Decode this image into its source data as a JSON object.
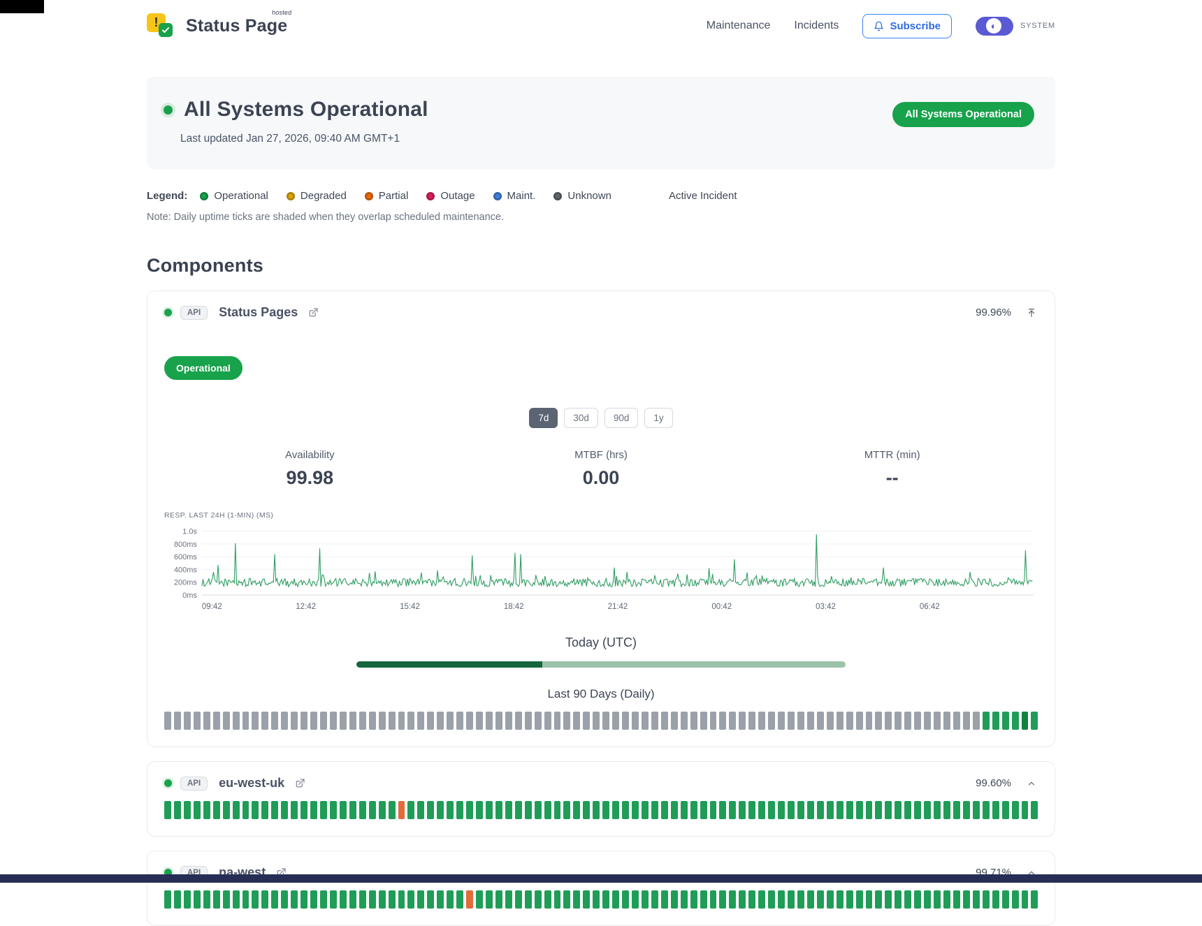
{
  "page": {
    "footer_bar_color": "#272e55"
  },
  "header": {
    "brand_name": "Status Page",
    "brand_sup": "hosted",
    "nav": [
      {
        "label": "Maintenance"
      },
      {
        "label": "Incidents"
      }
    ],
    "subscribe_label": "Subscribe",
    "theme_label": "SYSTEM"
  },
  "hero": {
    "title": "All Systems Operational",
    "last_updated": "Last updated Jan 27, 2026, 09:40 AM GMT+1",
    "badge_label": "All Systems Operational"
  },
  "legend": {
    "label": "Legend:",
    "items": [
      {
        "label": "Operational",
        "color": "#18a24b"
      },
      {
        "label": "Degraded",
        "color": "#d9a40a"
      },
      {
        "label": "Partial",
        "color": "#e8680a"
      },
      {
        "label": "Outage",
        "color": "#d91f5a"
      },
      {
        "label": "Maint.",
        "color": "#3f7ed6"
      },
      {
        "label": "Unknown",
        "color": "#5f6368"
      }
    ],
    "active_incident_label": "Active Incident",
    "note": "Note: Daily uptime ticks are shaded when they overlap scheduled maintenance."
  },
  "components": {
    "heading": "Components",
    "status_colors": {
      "operational": "#1f9d57",
      "operational_dark": "#11813f",
      "partial": "#e06c3a",
      "unknown": "#9aa1a9"
    },
    "ranges": [
      "7d",
      "30d",
      "90d",
      "1y"
    ],
    "selected_range": "7d",
    "stats": [
      {
        "label": "Availability",
        "value": "99.98"
      },
      {
        "label": "MTBF (hrs)",
        "value": "0.00"
      },
      {
        "label": "MTTR (min)",
        "value": "--"
      }
    ],
    "today_label": "Today (UTC)",
    "today_progress_pct": 38,
    "history_label": "Last 90 Days (Daily)",
    "items": [
      {
        "badge": "API",
        "name": "Status Pages",
        "uptime": "99.96%",
        "status_label": "Operational",
        "history_runs": [
          [
            "unknown",
            84
          ],
          [
            "operational",
            4
          ],
          [
            "operational_dark",
            1
          ],
          [
            "operational",
            1
          ]
        ]
      },
      {
        "badge": "API",
        "name": "eu-west-uk",
        "uptime": "99.60%",
        "history_runs": [
          [
            "operational",
            24
          ],
          [
            "partial",
            1
          ],
          [
            "operational",
            65
          ]
        ]
      },
      {
        "badge": "API",
        "name": "na-west",
        "uptime": "99.71%",
        "history_runs": [
          [
            "operational",
            31
          ],
          [
            "partial",
            1
          ],
          [
            "operational",
            58
          ]
        ]
      }
    ]
  },
  "chart_data": {
    "type": "line",
    "title": "RESP. LAST 24H (1-MIN) (MS)",
    "x_tick_labels": [
      "09:42",
      "12:42",
      "15:42",
      "18:42",
      "21:42",
      "00:42",
      "03:42",
      "06:42"
    ],
    "y_ticks": [
      {
        "label": "0ms",
        "value": 0
      },
      {
        "label": "200ms",
        "value": 200
      },
      {
        "label": "400ms",
        "value": 400
      },
      {
        "label": "600ms",
        "value": 600
      },
      {
        "label": "800ms",
        "value": 800
      },
      {
        "label": "1.0s",
        "value": 1000
      }
    ],
    "ylim": [
      0,
      1050
    ],
    "minutes_span": 1440,
    "baseline_ms": {
      "min": 130,
      "max": 260
    },
    "spikes": [
      {
        "minute": 20,
        "ms": 360
      },
      {
        "minute": 28,
        "ms": 470
      },
      {
        "minute": 58,
        "ms": 810
      },
      {
        "minute": 126,
        "ms": 640
      },
      {
        "minute": 205,
        "ms": 730
      },
      {
        "minute": 300,
        "ms": 370
      },
      {
        "minute": 380,
        "ms": 350
      },
      {
        "minute": 469,
        "ms": 620
      },
      {
        "minute": 543,
        "ms": 660
      },
      {
        "minute": 552,
        "ms": 640
      },
      {
        "minute": 715,
        "ms": 430
      },
      {
        "minute": 879,
        "ms": 420
      },
      {
        "minute": 923,
        "ms": 560
      },
      {
        "minute": 1064,
        "ms": 950
      },
      {
        "minute": 1181,
        "ms": 430
      },
      {
        "minute": 1330,
        "ms": 360
      },
      {
        "minute": 1426,
        "ms": 700
      }
    ],
    "line_color": "#2f9e62"
  }
}
